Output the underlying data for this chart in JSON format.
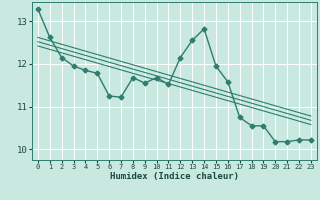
{
  "title": "",
  "xlabel": "Humidex (Indice chaleur)",
  "ylabel": "",
  "background_color": "#c8e8e0",
  "grid_color": "#ffffff",
  "line_color": "#2e7d6e",
  "xlim": [
    -0.5,
    23.5
  ],
  "ylim": [
    9.75,
    13.45
  ],
  "yticks": [
    10,
    11,
    12,
    13
  ],
  "xticks": [
    0,
    1,
    2,
    3,
    4,
    5,
    6,
    7,
    8,
    9,
    10,
    11,
    12,
    13,
    14,
    15,
    16,
    17,
    18,
    19,
    20,
    21,
    22,
    23
  ],
  "jagged_x": [
    0,
    1,
    2,
    3,
    4,
    5,
    6,
    7,
    8,
    9,
    10,
    11,
    12,
    13,
    14,
    15,
    16,
    17,
    18,
    19,
    20,
    21,
    22,
    23
  ],
  "jagged_y": [
    13.28,
    12.62,
    12.15,
    11.95,
    11.85,
    11.78,
    11.25,
    11.22,
    11.68,
    11.55,
    11.68,
    11.52,
    12.15,
    12.55,
    12.82,
    11.95,
    11.58,
    10.75,
    10.55,
    10.55,
    10.18,
    10.18,
    10.22,
    10.22
  ],
  "trend1_x": [
    0,
    23
  ],
  "trend1_y": [
    12.62,
    10.78
  ],
  "trend2_x": [
    0,
    23
  ],
  "trend2_y": [
    12.52,
    10.68
  ],
  "trend3_x": [
    0,
    23
  ],
  "trend3_y": [
    12.42,
    10.58
  ],
  "marker": "D",
  "marker_size": 2.5,
  "linewidth": 1.0,
  "trend_linewidth": 0.8
}
